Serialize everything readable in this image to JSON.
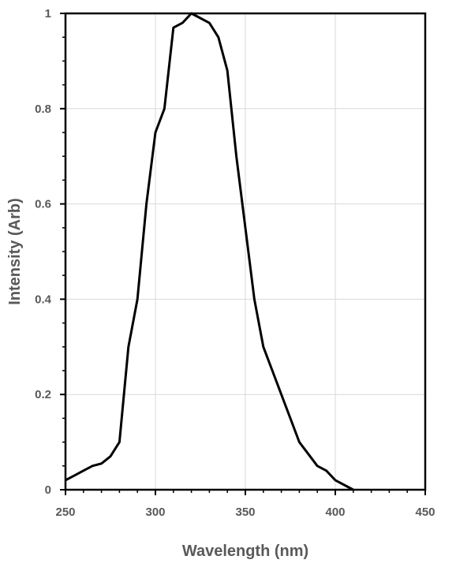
{
  "chart_data": {
    "type": "line",
    "title": "",
    "xlabel": "Wavelength (nm)",
    "ylabel": "Intensity (Arb)",
    "xlim": [
      250,
      450
    ],
    "ylim": [
      0,
      1
    ],
    "x_ticks": [
      "250",
      "300",
      "350",
      "400",
      "450"
    ],
    "y_ticks": [
      "0",
      "0.2",
      "0.4",
      "0.6",
      "0.8",
      "1"
    ],
    "grid": true,
    "legend": "none",
    "line_color": "#000000",
    "grid_color": "#d9d9d9",
    "series": [
      {
        "x": [
          250,
          255,
          260,
          265,
          270,
          275,
          280,
          285,
          290,
          295,
          300,
          305,
          310,
          315,
          320,
          325,
          330,
          335,
          340,
          345,
          350,
          355,
          360,
          365,
          370,
          375,
          380,
          385,
          390,
          395,
          400,
          405,
          410
        ],
        "y": [
          0.02,
          0.03,
          0.04,
          0.05,
          0.055,
          0.07,
          0.1,
          0.3,
          0.4,
          0.6,
          0.75,
          0.8,
          0.97,
          0.98,
          1.0,
          0.99,
          0.98,
          0.95,
          0.88,
          0.7,
          0.55,
          0.4,
          0.3,
          0.25,
          0.2,
          0.15,
          0.1,
          0.075,
          0.05,
          0.04,
          0.02,
          0.01,
          0.0
        ]
      }
    ]
  }
}
